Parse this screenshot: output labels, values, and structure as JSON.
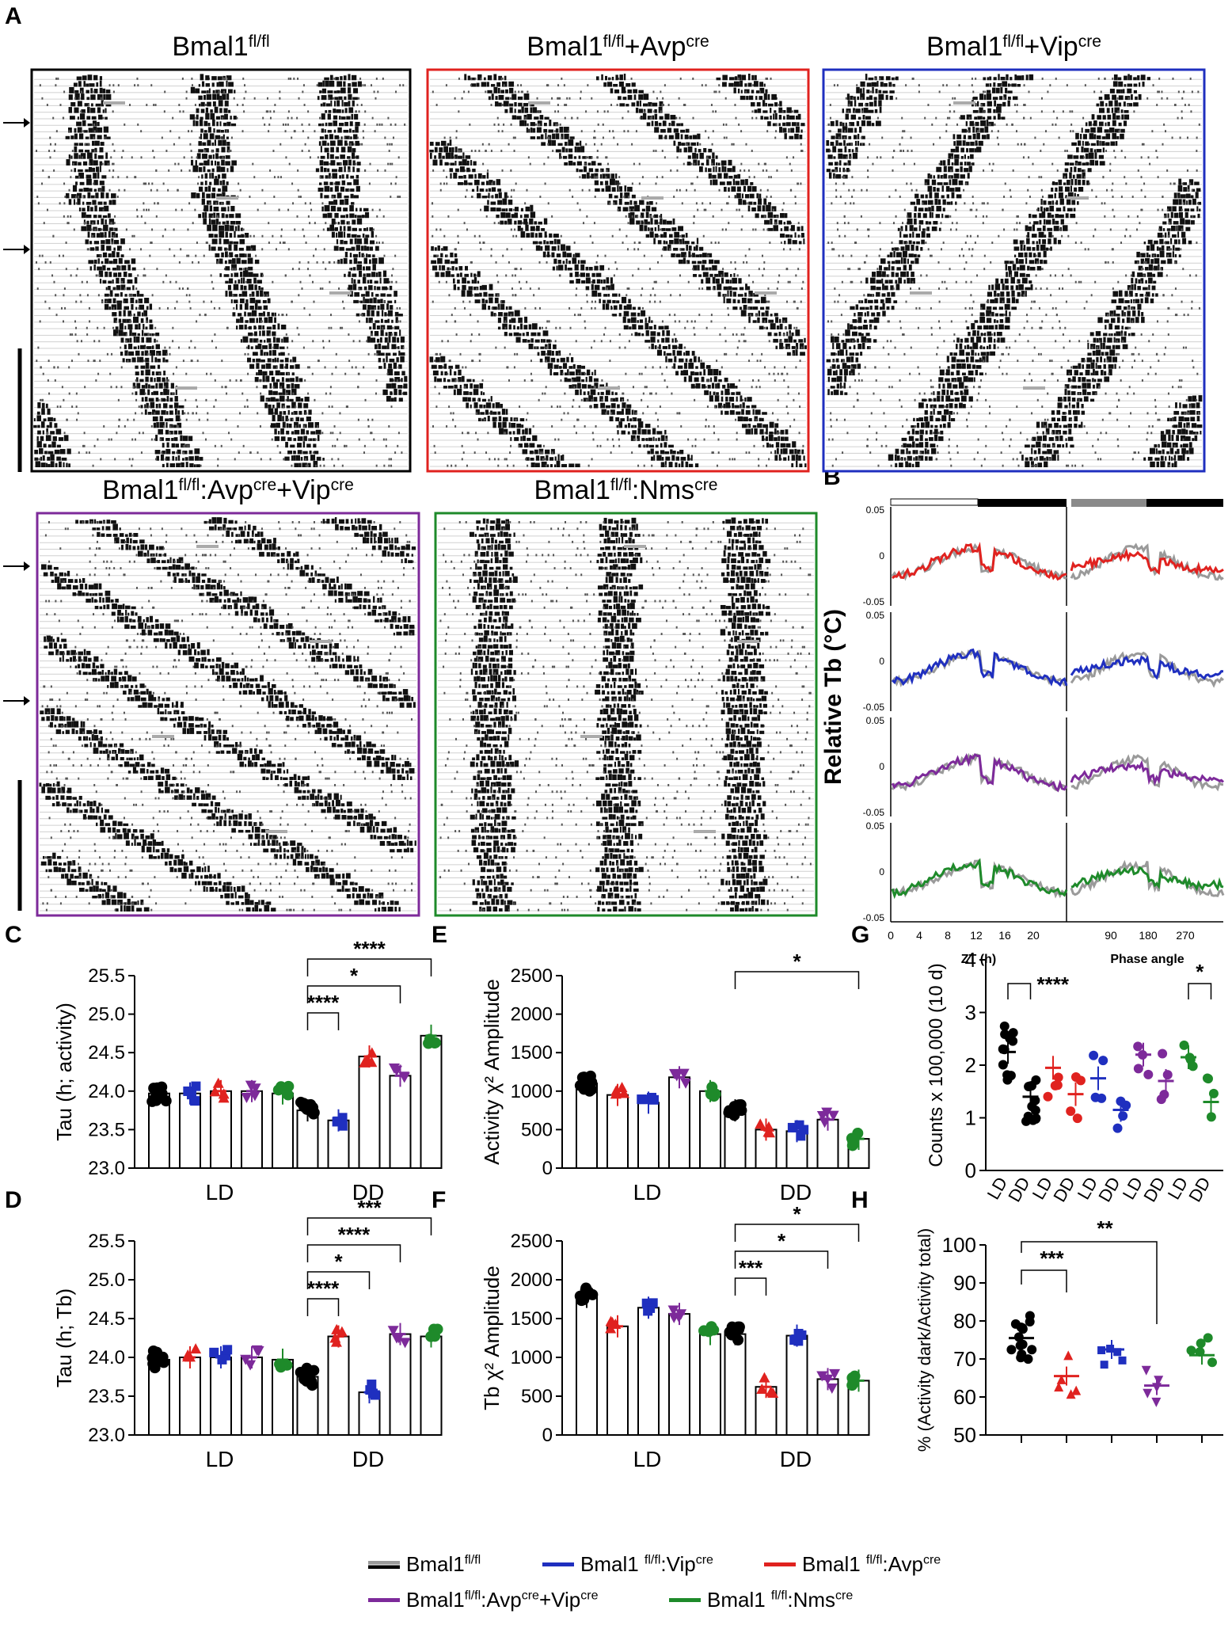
{
  "panel_labels": [
    "A",
    "B",
    "C",
    "D",
    "E",
    "F",
    "G",
    "H"
  ],
  "colors": {
    "wt": "#000000",
    "wt_light": "#9a9a9a",
    "avp": "#e0221f",
    "vip": "#1f2fbf",
    "avpvip": "#7d2a9a",
    "nms": "#1e8a2a"
  },
  "actograms": [
    {
      "key": "wt",
      "title_base": "Bmal1",
      "title_sup": "fl/fl",
      "title_rest": "",
      "rest_sup": "",
      "color": "#000000"
    },
    {
      "key": "avp",
      "title_base": "Bmal1",
      "title_sup": "fl/fl",
      "title_rest": "+Avp",
      "rest_sup": "cre",
      "color": "#e0221f"
    },
    {
      "key": "vip",
      "title_base": "Bmal1",
      "title_sup": "fl/fl",
      "title_rest": "+Vip",
      "rest_sup": "cre",
      "color": "#1f2fbf"
    },
    {
      "key": "avpvip",
      "title_base": "Bmal1",
      "title_sup": "fl/fl",
      "title_rest": ":Avp",
      "rest_sup": "cre",
      "title_rest2": "+Vip",
      "rest2_sup": "cre",
      "color": "#7d2a9a"
    },
    {
      "key": "nms",
      "title_base": "Bmal1",
      "title_sup": "fl/fl",
      "title_rest": ":Nms",
      "rest_sup": "cre",
      "color": "#1e8a2a"
    }
  ],
  "chart_data": [
    {
      "id": "B",
      "type": "line",
      "ylabel": "Relative Tb (°C)",
      "left_xlabel": "ZT (h)",
      "right_xlabel": "Phase angle",
      "left_xticks": [
        "0",
        "4",
        "8",
        "12",
        "16",
        "20"
      ],
      "right_xticks": [
        "90",
        "180",
        "270"
      ],
      "yticks": [
        "0.05",
        "0",
        "-0.05"
      ],
      "rows": [
        "avp",
        "vip",
        "avpvip",
        "nms"
      ]
    },
    {
      "id": "C",
      "type": "bar",
      "ylabel": "Tau  (h; activity)",
      "ylim": [
        23.0,
        25.5
      ],
      "yticks": [
        "23.0",
        "23.5",
        "24.0",
        "24.5",
        "25.0",
        "25.5"
      ],
      "groups": [
        "LD",
        "DD"
      ],
      "series": [
        {
          "name": "wt",
          "values": [
            23.97,
            23.75
          ]
        },
        {
          "name": "vip",
          "values": [
            23.97,
            23.62
          ]
        },
        {
          "name": "avp",
          "values": [
            24.0,
            24.45
          ]
        },
        {
          "name": "avpvip",
          "values": [
            24.0,
            24.2
          ]
        },
        {
          "name": "nms",
          "values": [
            23.97,
            24.72
          ]
        }
      ],
      "sig": [
        "****",
        "*",
        "****"
      ]
    },
    {
      "id": "D",
      "type": "bar",
      "ylabel": "Tau (h; Tb)",
      "ylim": [
        23.0,
        25.5
      ],
      "yticks": [
        "23.0",
        "23.5",
        "24.0",
        "24.5",
        "25.0",
        "25.5"
      ],
      "groups": [
        "LD",
        "DD"
      ],
      "series": [
        {
          "name": "wt",
          "values": [
            23.97,
            23.75
          ]
        },
        {
          "name": "avp",
          "values": [
            24.0,
            24.27
          ]
        },
        {
          "name": "vip",
          "values": [
            24.0,
            23.55
          ]
        },
        {
          "name": "avpvip",
          "values": [
            24.0,
            24.3
          ]
        },
        {
          "name": "nms",
          "values": [
            23.97,
            24.27
          ]
        }
      ],
      "sig": [
        "****",
        "*",
        "****",
        "***"
      ]
    },
    {
      "id": "E",
      "type": "bar",
      "ylabel": "Activity χ² Amplitude",
      "ylim": [
        0,
        2500
      ],
      "yticks": [
        "0",
        "500",
        "1000",
        "1500",
        "2000",
        "2500"
      ],
      "groups": [
        "LD",
        "DD"
      ],
      "series": [
        {
          "name": "wt",
          "values": [
            1100,
            750
          ]
        },
        {
          "name": "avp",
          "values": [
            950,
            500
          ]
        },
        {
          "name": "vip",
          "values": [
            850,
            480
          ]
        },
        {
          "name": "avpvip",
          "values": [
            1180,
            630
          ]
        },
        {
          "name": "nms",
          "values": [
            1000,
            380
          ]
        }
      ],
      "sig": [
        "*"
      ]
    },
    {
      "id": "F",
      "type": "bar",
      "ylabel": "Tb χ² Amplitude",
      "ylim": [
        0,
        2500
      ],
      "yticks": [
        "0",
        "500",
        "1000",
        "1500",
        "2000",
        "2500"
      ],
      "groups": [
        "LD",
        "DD"
      ],
      "series": [
        {
          "name": "wt",
          "values": [
            1780,
            1300
          ]
        },
        {
          "name": "avp",
          "values": [
            1400,
            620
          ]
        },
        {
          "name": "vip",
          "values": [
            1640,
            1280
          ]
        },
        {
          "name": "avpvip",
          "values": [
            1560,
            720
          ]
        },
        {
          "name": "nms",
          "values": [
            1300,
            700
          ]
        }
      ],
      "sig": [
        "***",
        "*",
        "*"
      ]
    },
    {
      "id": "G",
      "type": "scatter",
      "ylabel": "Counts x 100,000  (10 d)",
      "ylim": [
        0,
        4
      ],
      "yticks": [
        "0",
        "1",
        "2",
        "3",
        "4"
      ],
      "xticks": [
        "LD",
        "DD",
        "LD",
        "DD",
        "LD",
        "DD",
        "LD",
        "DD",
        "LD",
        "DD"
      ],
      "means": [
        2.25,
        1.4,
        1.95,
        1.45,
        1.75,
        1.15,
        2.2,
        1.7,
        2.15,
        1.3
      ],
      "sig": [
        "****",
        "*"
      ]
    },
    {
      "id": "H",
      "type": "scatter",
      "ylabel": "% (Activity dark/Activity total)",
      "ylim": [
        50,
        100
      ],
      "yticks": [
        "50",
        "60",
        "70",
        "80",
        "90",
        "100"
      ],
      "means": [
        75.5,
        65.5,
        72.5,
        63,
        71
      ],
      "sig": [
        "***",
        "**"
      ]
    }
  ],
  "legend": [
    {
      "key": "wt",
      "base": "Bmal1",
      "sup": "fl/fl",
      "rest": "",
      "rest_sup": ""
    },
    {
      "key": "vip",
      "base": "Bmal1 ",
      "sup": "fl/fl",
      "rest": ":Vip",
      "rest_sup": "cre"
    },
    {
      "key": "avp",
      "base": "Bmal1 ",
      "sup": "fl/fl",
      "rest": ":Avp",
      "rest_sup": "cre"
    },
    {
      "key": "avpvip",
      "base": "Bmal1",
      "sup": "fl/fl",
      "rest": ":Avp",
      "rest_sup": "cre",
      "rest2": "+Vip",
      "rest2_sup": "cre"
    },
    {
      "key": "nms",
      "base": "Bmal1 ",
      "sup": "fl/fl",
      "rest": ":Nms",
      "rest_sup": "cre"
    }
  ]
}
